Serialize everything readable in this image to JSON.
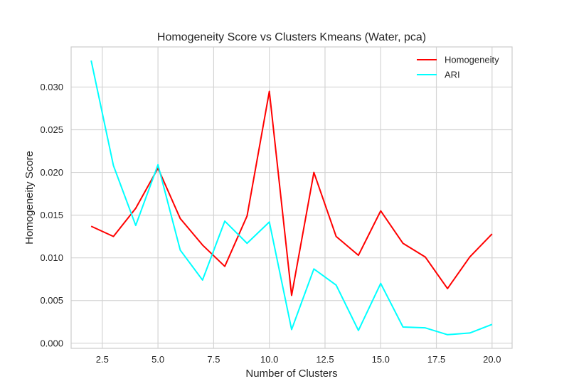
{
  "chart_data": {
    "type": "line",
    "title": "Homogeneity Score vs Clusters Kmeans (Water, pca)",
    "xlabel": "Number of Clusters",
    "ylabel": "Homogeneity Score",
    "xlim": [
      1.1,
      20.9
    ],
    "ylim": [
      -0.0006,
      0.0347
    ],
    "xticks": [
      2.5,
      5.0,
      7.5,
      10.0,
      12.5,
      15.0,
      17.5,
      20.0
    ],
    "xtick_labels": [
      "2.5",
      "5.0",
      "7.5",
      "10.0",
      "12.5",
      "15.0",
      "17.5",
      "20.0"
    ],
    "yticks": [
      0.0,
      0.005,
      0.01,
      0.015,
      0.02,
      0.025,
      0.03
    ],
    "ytick_labels": [
      "0.000",
      "0.005",
      "0.010",
      "0.015",
      "0.020",
      "0.025",
      "0.030"
    ],
    "grid": true,
    "legend_position": "top-right",
    "x": [
      2,
      3,
      4,
      5,
      6,
      7,
      8,
      9,
      10,
      11,
      12,
      13,
      14,
      15,
      16,
      17,
      18,
      19,
      20
    ],
    "series": [
      {
        "name": "Homogeneity",
        "color": "#ff0000",
        "values": [
          0.0137,
          0.0125,
          0.0158,
          0.0205,
          0.0146,
          0.0115,
          0.009,
          0.0149,
          0.0295,
          0.0056,
          0.02,
          0.0125,
          0.0103,
          0.0155,
          0.0117,
          0.0101,
          0.0064,
          0.0101,
          0.0128
        ]
      },
      {
        "name": "ARI",
        "color": "#00ffff",
        "values": [
          0.0331,
          0.0208,
          0.0138,
          0.0209,
          0.0109,
          0.0074,
          0.0143,
          0.0117,
          0.0142,
          0.0016,
          0.0087,
          0.0068,
          0.0015,
          0.007,
          0.0019,
          0.0018,
          0.001,
          0.0012,
          0.0022
        ]
      }
    ]
  }
}
